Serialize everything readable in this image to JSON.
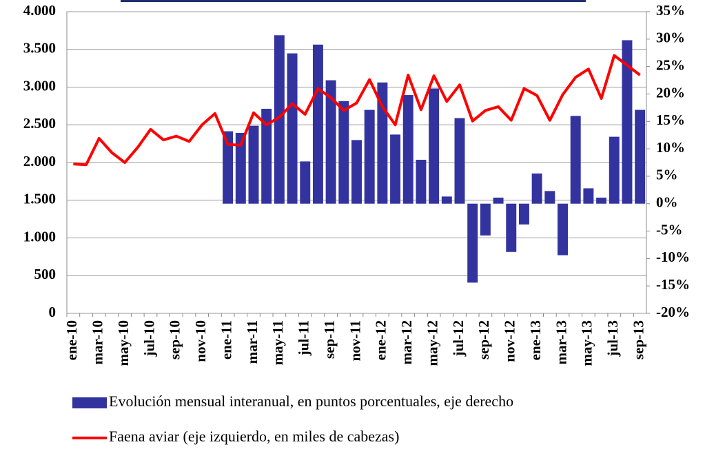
{
  "chart_data": {
    "type": "bar",
    "categories": [
      "ene-10",
      null,
      "mar-10",
      null,
      "may-10",
      null,
      "jul-10",
      null,
      "sep-10",
      null,
      "nov-10",
      null,
      "ene-11",
      null,
      "mar-11",
      null,
      "may-11",
      null,
      "jul-11",
      null,
      "sep-11",
      null,
      "nov-11",
      null,
      "ene-12",
      null,
      "mar-12",
      null,
      "may-12",
      null,
      "jul-12",
      null,
      "sep-12",
      null,
      "nov-12",
      null,
      "ene-13",
      null,
      "mar-13",
      null,
      "may-13",
      null,
      "jul-13",
      null,
      "sep-13"
    ],
    "series": [
      {
        "name": "Evolución mensual interanual, en puntos porcentuales, eje derecho",
        "type": "bar",
        "axis": "y2",
        "color": "#3333a0",
        "values": [
          null,
          null,
          null,
          null,
          null,
          null,
          null,
          null,
          null,
          null,
          null,
          null,
          13.2,
          12.9,
          14.2,
          17.3,
          30.7,
          27.4,
          7.7,
          29.0,
          22.5,
          18.7,
          11.6,
          17.1,
          22.1,
          12.6,
          19.8,
          8.0,
          21.0,
          1.3,
          15.6,
          -14.4,
          -5.8,
          1.1,
          -8.8,
          -3.8,
          5.5,
          2.3,
          -9.4,
          16.0,
          2.8,
          1.1,
          12.2,
          29.8,
          17.1
        ]
      },
      {
        "name": "Faena aviar (eje izquierdo, en miles de cabezas)",
        "type": "line",
        "axis": "y",
        "color": "#ff0000",
        "values": [
          1980,
          1970,
          2320,
          2130,
          2000,
          2200,
          2440,
          2300,
          2350,
          2280,
          2500,
          2650,
          2240,
          2230,
          2660,
          2500,
          2600,
          2780,
          2640,
          2980,
          2860,
          2690,
          2790,
          3100,
          2740,
          2500,
          3160,
          2700,
          3150,
          2810,
          3030,
          2550,
          2690,
          2740,
          2560,
          2980,
          2890,
          2560,
          2900,
          3130,
          3240,
          2850,
          3420,
          3290,
          3160
        ]
      }
    ],
    "ylim": [
      0,
      4000
    ],
    "yticks": [
      0,
      500,
      {
        "value": 1000,
        "label": "1.000"
      },
      {
        "value": 1500,
        "label": "1.500"
      },
      {
        "value": 2000,
        "label": "2.000"
      },
      {
        "value": 2500,
        "label": "2.500"
      },
      {
        "value": 3000,
        "label": "3.000"
      },
      {
        "value": 3500,
        "label": "3.500"
      },
      {
        "value": 4000,
        "label": "4.000"
      }
    ],
    "y2lim": [
      -20,
      35
    ],
    "y2ticks": [
      {
        "value": -20,
        "label": "-20%"
      },
      {
        "value": -15,
        "label": "-15%"
      },
      {
        "value": -10,
        "label": "-10%"
      },
      {
        "value": -5,
        "label": "-5%"
      },
      {
        "value": 0,
        "label": "0%"
      },
      {
        "value": 5,
        "label": "5%"
      },
      {
        "value": 10,
        "label": "10%"
      },
      {
        "value": 15,
        "label": "15%"
      },
      {
        "value": 20,
        "label": "20%"
      },
      {
        "value": 25,
        "label": "25%"
      },
      {
        "value": 30,
        "label": "30%"
      },
      {
        "value": 35,
        "label": "35%"
      }
    ],
    "grid": true,
    "legend": "bottom"
  }
}
